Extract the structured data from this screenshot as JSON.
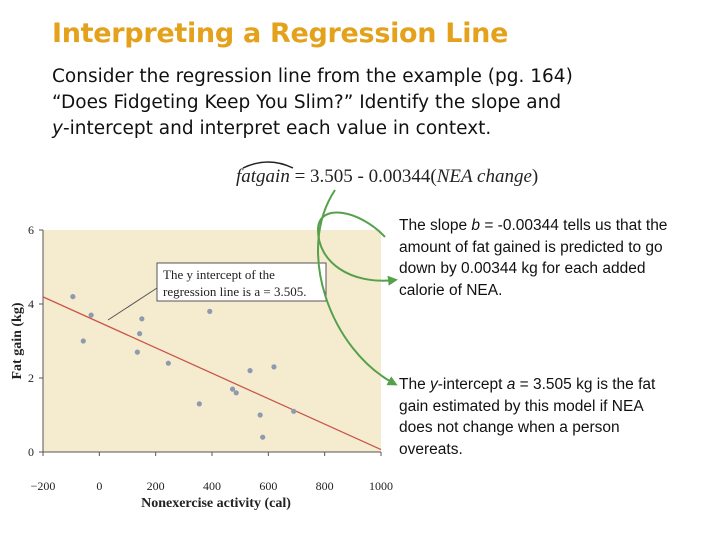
{
  "slide": {
    "title": "Interpreting a Regression Line",
    "intro_line1": "Consider the regression line from the example (pg. 164)",
    "intro_line2": "“Does Fidgeting Keep You Slim?”  Identify the slope and",
    "intro_line3_italic": "y",
    "intro_line3_rest": "-intercept and interpret each value in context."
  },
  "equation": {
    "response": "fatgain",
    "equals": "= 3.505  -  0.00344(",
    "explanatory": "NEA change",
    "close": ")"
  },
  "callouts": {
    "slope": {
      "pre": "The slope ",
      "symbol": "b",
      "post": " = -0.00344 tells us that the amount of fat gained is predicted to go down by 0.00344 kg for each added calorie of NEA."
    },
    "intercept": {
      "pre": "The ",
      "italic": "y",
      "mid": "-intercept ",
      "symbol": "a",
      "post": " = 3.505 kg is the fat gain estimated by this model if NEA does not change when a person overeats."
    }
  },
  "plot_annotation": {
    "line1": "The y intercept of the",
    "line2": "regression line is a = 3.505."
  },
  "colors": {
    "title": "#e4a11c",
    "plot_background": "#f5ecd0",
    "regression_line": "#c8564a",
    "points": "#8e9aae",
    "arrows": "#55a04a"
  },
  "chart_data": {
    "type": "scatter",
    "xlabel": "Nonexercise activity (cal)",
    "ylabel": "Fat gain (kg)",
    "xlim": [
      -200,
      1000
    ],
    "ylim": [
      0,
      6
    ],
    "x_ticks": [
      "−200",
      "0",
      "200",
      "400",
      "600",
      "800",
      "1000"
    ],
    "y_ticks": [
      "0",
      "2",
      "4",
      "6"
    ],
    "x_tick_values": [
      -200,
      0,
      200,
      400,
      600,
      800,
      1000
    ],
    "y_tick_values": [
      0,
      2,
      4,
      6
    ],
    "grid": false,
    "points": [
      {
        "x": -94,
        "y": 4.2
      },
      {
        "x": -57,
        "y": 3.0
      },
      {
        "x": -29,
        "y": 3.7
      },
      {
        "x": 135,
        "y": 2.7
      },
      {
        "x": 143,
        "y": 3.2
      },
      {
        "x": 151,
        "y": 3.6
      },
      {
        "x": 245,
        "y": 2.4
      },
      {
        "x": 355,
        "y": 1.3
      },
      {
        "x": 392,
        "y": 3.8
      },
      {
        "x": 473,
        "y": 1.7
      },
      {
        "x": 486,
        "y": 1.6
      },
      {
        "x": 535,
        "y": 2.2
      },
      {
        "x": 571,
        "y": 1.0
      },
      {
        "x": 580,
        "y": 0.4
      },
      {
        "x": 620,
        "y": 2.3
      },
      {
        "x": 690,
        "y": 1.1
      }
    ],
    "regression": {
      "intercept": 3.505,
      "slope": -0.00344
    }
  }
}
